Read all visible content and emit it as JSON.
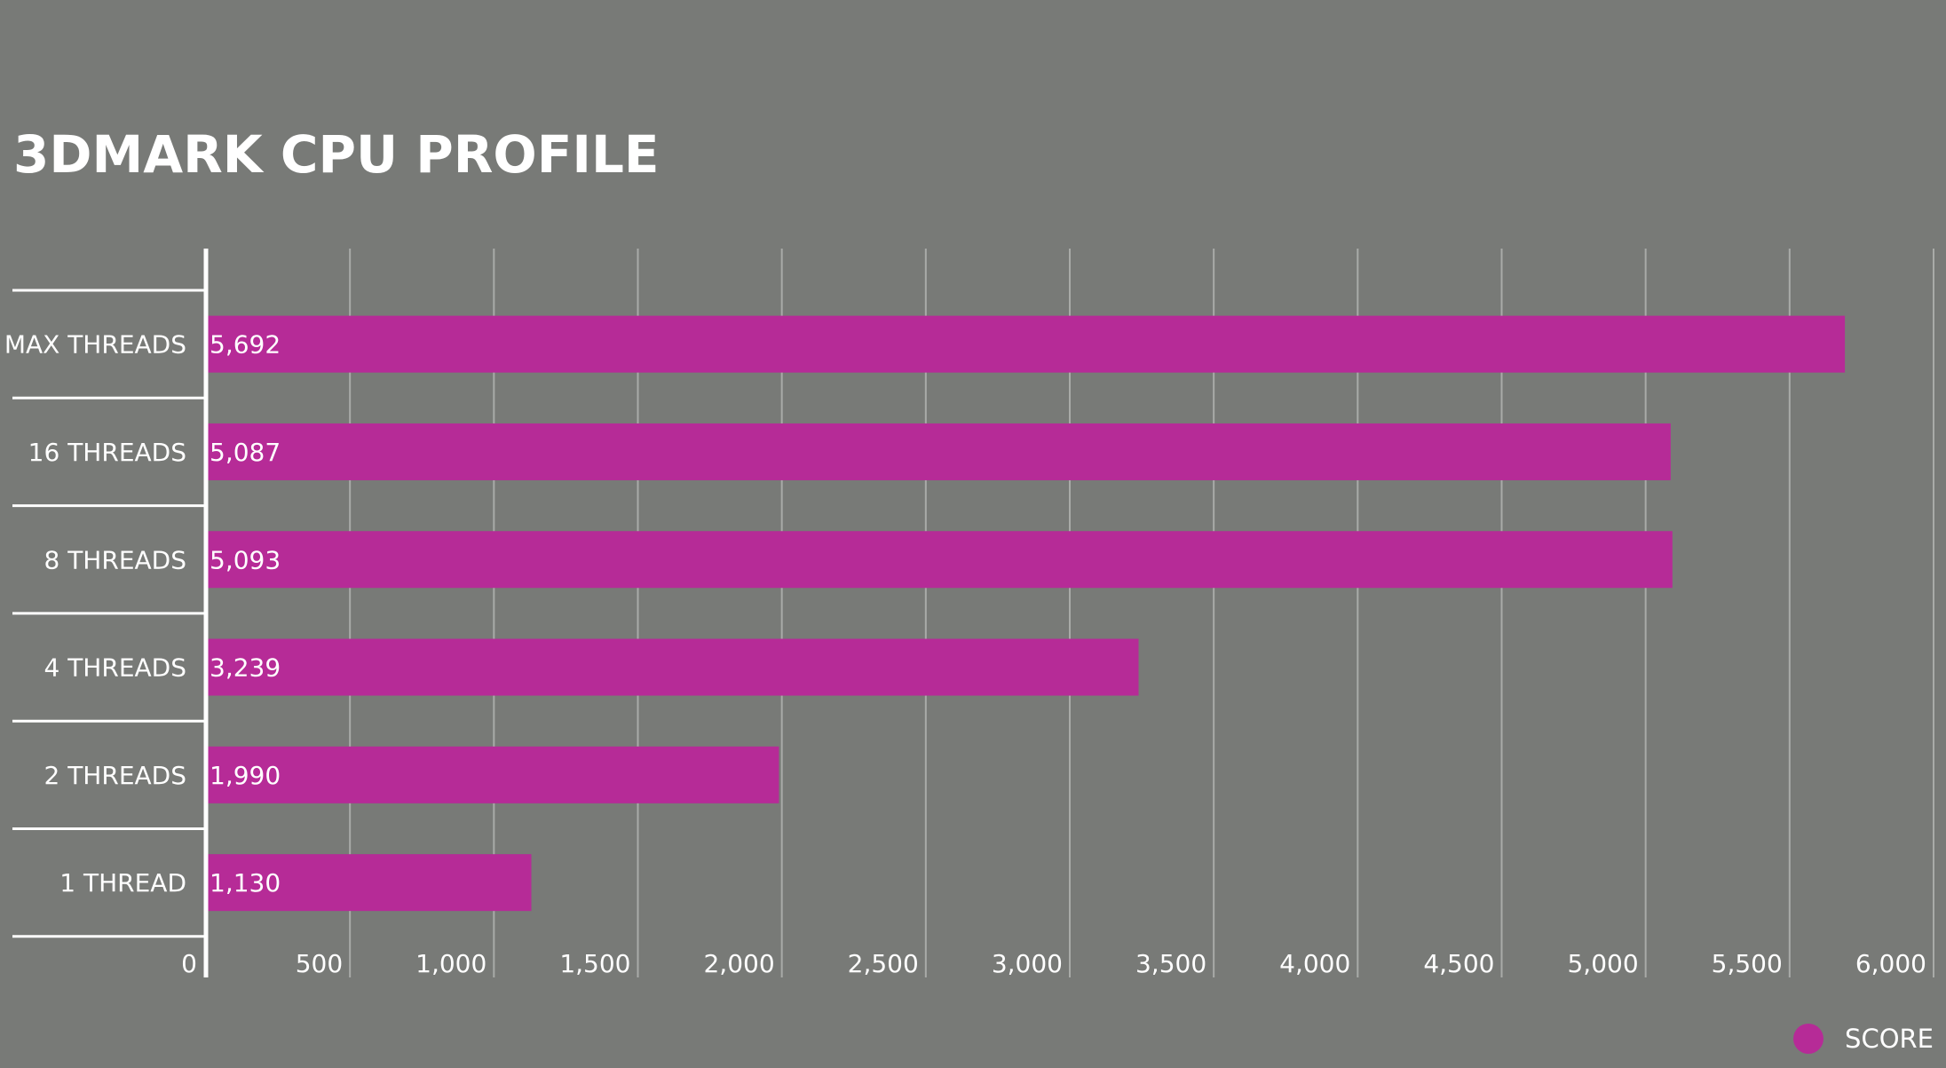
{
  "chart_data": {
    "type": "bar",
    "orientation": "horizontal",
    "title": "3DMARK CPU PROFILE",
    "xlabel": "",
    "ylabel": "",
    "categories": [
      "MAX THREADS",
      "16 THREADS",
      "8 THREADS",
      "4 THREADS",
      "2 THREADS",
      "1 THREAD"
    ],
    "series": [
      {
        "name": "SCORE",
        "values": [
          5692,
          5087,
          5093,
          3239,
          1990,
          1130
        ],
        "data_labels": [
          "5,692",
          "5,087",
          "5,093",
          "3,239",
          "1,990",
          "1,130"
        ]
      }
    ],
    "xlim": [
      0,
      6000
    ],
    "x_ticks": [
      0,
      500,
      1000,
      1500,
      2000,
      2500,
      3000,
      3500,
      4000,
      4500,
      5000,
      5500,
      6000
    ],
    "x_tick_labels": [
      "0",
      "500",
      "1,000",
      "1,500",
      "2,000",
      "2,500",
      "3,000",
      "3,500",
      "4,000",
      "4,500",
      "5,000",
      "5,500",
      "6,000"
    ],
    "grid": true,
    "legend_position": "bottom-right",
    "colors": {
      "background": "#787a77",
      "bar": "#b62b97",
      "gridline": "#a9aba8",
      "axis": "#ffffff",
      "text": "#ffffff"
    }
  }
}
